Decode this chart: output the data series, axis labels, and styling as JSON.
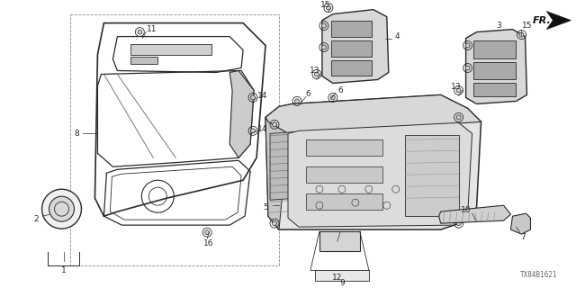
{
  "bg_color": "#ffffff",
  "fig_width": 6.4,
  "fig_height": 3.2,
  "watermark": "TX84B1621",
  "fr_label": "FR.",
  "lc": "#2a2a2a",
  "label_fs": 6.5
}
